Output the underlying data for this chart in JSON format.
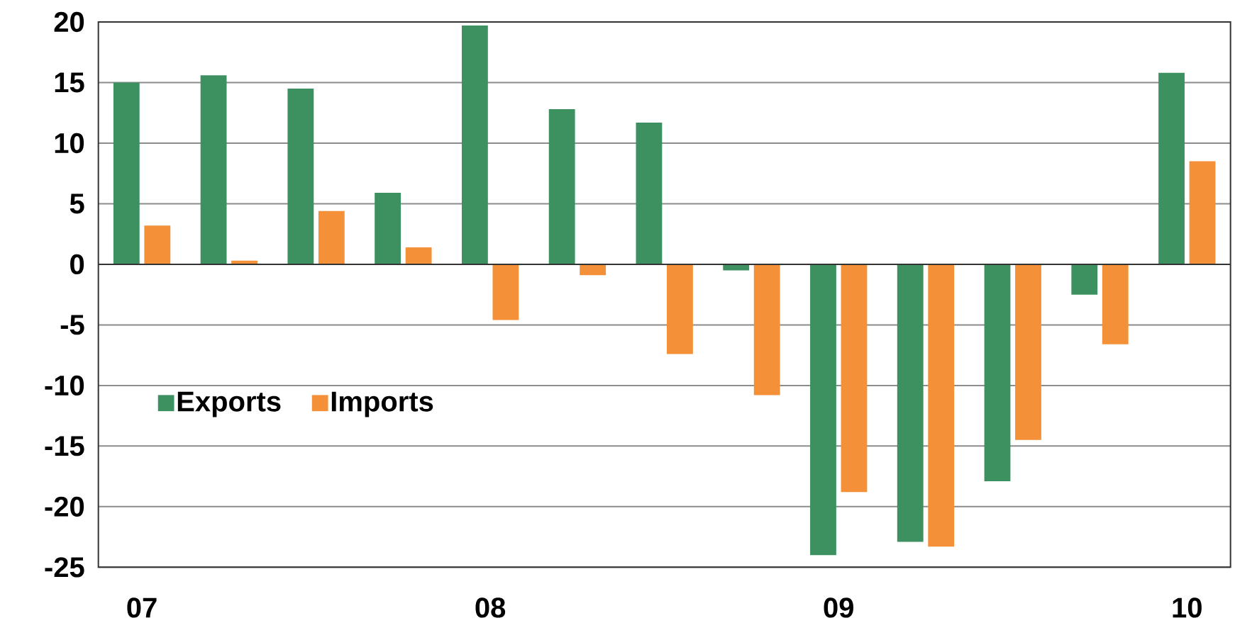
{
  "chart_data": {
    "type": "bar",
    "categories": [
      "07",
      null,
      null,
      null,
      "08",
      null,
      null,
      null,
      "09",
      null,
      null,
      null,
      "10"
    ],
    "series": [
      {
        "name": "Exports",
        "color": "#3d9160",
        "values": [
          15.0,
          15.6,
          14.5,
          5.9,
          19.7,
          12.8,
          11.7,
          -0.5,
          -24.0,
          -22.9,
          -17.9,
          -2.5,
          15.8
        ]
      },
      {
        "name": "Imports",
        "color": "#f39038",
        "values": [
          3.2,
          0.3,
          4.4,
          1.4,
          -4.6,
          -0.9,
          -7.4,
          -10.8,
          -18.8,
          -23.3,
          -14.5,
          -6.6,
          8.5
        ]
      }
    ],
    "ylim": [
      -25,
      20
    ],
    "yticks": [
      -25,
      -20,
      -15,
      -10,
      -5,
      0,
      5,
      10,
      15,
      20
    ],
    "grid": "y",
    "legend": "left"
  }
}
